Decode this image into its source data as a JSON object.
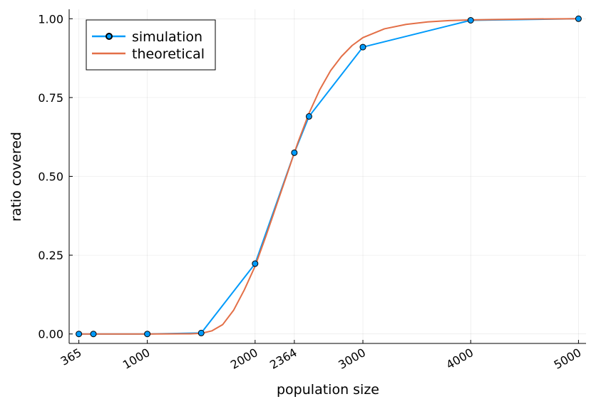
{
  "chart_data": {
    "type": "line",
    "title": "",
    "xlabel": "population size",
    "ylabel": "ratio covered",
    "xlim": [
      275,
      5070
    ],
    "ylim": [
      -0.03,
      1.03
    ],
    "x_ticks": [
      {
        "value": 365,
        "label": "365"
      },
      {
        "value": 1000,
        "label": "1000"
      },
      {
        "value": 2000,
        "label": "2000"
      },
      {
        "value": 2364,
        "label": "2364"
      },
      {
        "value": 3000,
        "label": "3000"
      },
      {
        "value": 4000,
        "label": "4000"
      },
      {
        "value": 5000,
        "label": "5000"
      }
    ],
    "y_ticks": [
      {
        "value": 0.0,
        "label": "0.00"
      },
      {
        "value": 0.25,
        "label": "0.25"
      },
      {
        "value": 0.5,
        "label": "0.50"
      },
      {
        "value": 0.75,
        "label": "0.75"
      },
      {
        "value": 1.0,
        "label": "1.00"
      }
    ],
    "grid": true,
    "legend_position": "top-left",
    "series": [
      {
        "name": "simulation",
        "color": "#009AFA",
        "marker": "circle",
        "x": [
          365,
          500,
          1000,
          1500,
          2000,
          2364,
          2500,
          3000,
          4000,
          5000
        ],
        "y": [
          0.0,
          0.0,
          0.0,
          0.003,
          0.223,
          0.575,
          0.69,
          0.91,
          0.995,
          1.0
        ]
      },
      {
        "name": "theoretical",
        "color": "#E36F47",
        "marker": "none",
        "x": [
          365,
          1000,
          1400,
          1500,
          1600,
          1700,
          1800,
          1900,
          2000,
          2100,
          2200,
          2300,
          2364,
          2400,
          2500,
          2600,
          2700,
          2800,
          2900,
          3000,
          3200,
          3400,
          3600,
          3800,
          4000,
          4500,
          5000
        ],
        "y": [
          0.0,
          0.0,
          0.0005,
          0.002,
          0.01,
          0.03,
          0.075,
          0.14,
          0.215,
          0.31,
          0.41,
          0.51,
          0.575,
          0.61,
          0.7,
          0.775,
          0.835,
          0.88,
          0.915,
          0.94,
          0.968,
          0.982,
          0.99,
          0.994,
          0.996,
          0.999,
          1.0
        ]
      }
    ]
  }
}
